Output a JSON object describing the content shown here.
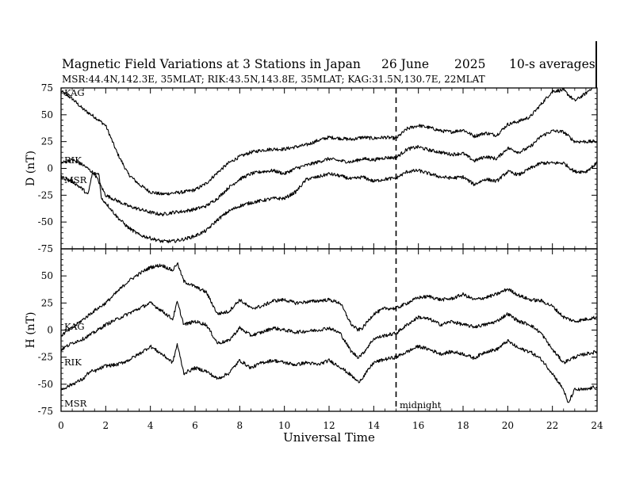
{
  "header": {
    "title": "Magnetic Field Variations at 3 Stations in Japan",
    "date": "26 June",
    "year": "2025",
    "averaging": "10-s averages",
    "stations_line": "MSR:44.4N,142.3E, 35MLAT;  RIK:43.5N,143.8E, 35MLAT;  KAG:31.5N,130.7E, 22MLAT"
  },
  "chart_data": [
    {
      "type": "line",
      "panel": "D",
      "ylabel": "D (nT)",
      "ylim": [
        -75,
        75
      ],
      "yticks": [
        75,
        50,
        25,
        0,
        -25,
        -50,
        -75
      ],
      "xlim": [
        0,
        24
      ],
      "series": [
        {
          "name": "KAG",
          "x": [
            0,
            0.5,
            1,
            1.5,
            2,
            2.5,
            3,
            3.5,
            4,
            4.5,
            5,
            5.5,
            6,
            6.5,
            7,
            7.5,
            8,
            8.5,
            9,
            9.5,
            10,
            10.5,
            11,
            11.5,
            12,
            12.5,
            13,
            13.5,
            14,
            14.5,
            15,
            15.5,
            16,
            16.5,
            17,
            17.5,
            18,
            18.5,
            19,
            19.5,
            20,
            20.5,
            21,
            21.5,
            22,
            22.5,
            23,
            23.5,
            24
          ],
          "y": [
            72,
            65,
            55,
            48,
            40,
            15,
            -5,
            -15,
            -22,
            -24,
            -23,
            -22,
            -20,
            -14,
            -4,
            5,
            11,
            15,
            17,
            18,
            18,
            20,
            22,
            26,
            29,
            28,
            27,
            29,
            28,
            29,
            28,
            37,
            40,
            38,
            35,
            34,
            36,
            30,
            33,
            31,
            41,
            44,
            48,
            60,
            72,
            73,
            63,
            70,
            80
          ]
        },
        {
          "name": "RIK",
          "x": [
            0,
            0.5,
            1,
            1.5,
            2,
            2.5,
            3,
            3.5,
            4,
            4.5,
            5,
            5.5,
            6,
            6.5,
            7,
            7.5,
            8,
            8.5,
            9,
            9.5,
            10,
            10.5,
            11,
            11.5,
            12,
            12.5,
            13,
            13.5,
            14,
            14.5,
            15,
            15.5,
            16,
            16.5,
            17,
            17.5,
            18,
            18.5,
            19,
            19.5,
            20,
            20.5,
            21,
            21.5,
            22,
            22.5,
            23,
            23.5,
            24
          ],
          "y": [
            5,
            8,
            3,
            -5,
            -25,
            -30,
            -35,
            -38,
            -41,
            -43,
            -41,
            -40,
            -38,
            -35,
            -28,
            -18,
            -10,
            -5,
            -3,
            -2,
            -5,
            0,
            3,
            6,
            9,
            7,
            6,
            9,
            8,
            10,
            10,
            18,
            20,
            17,
            15,
            13,
            14,
            7,
            11,
            9,
            19,
            15,
            20,
            30,
            35,
            34,
            25,
            25,
            25
          ]
        },
        {
          "name": "MSR",
          "x": [
            0,
            0.5,
            1,
            1.2,
            1.4,
            1.6,
            1.7,
            1.8,
            2,
            2.5,
            3,
            3.5,
            4,
            4.5,
            5,
            5.5,
            6,
            6.5,
            7,
            7.5,
            8,
            8.5,
            9,
            9.5,
            10,
            10.5,
            11,
            11.5,
            12,
            12.5,
            13,
            13.5,
            14,
            14.5,
            15,
            15.5,
            16,
            16.5,
            17,
            17.5,
            18,
            18.5,
            19,
            19.5,
            20,
            20.5,
            21,
            21.5,
            22,
            22.5,
            23,
            23.5,
            24
          ],
          "y": [
            -8,
            -12,
            -20,
            -25,
            -5,
            -5,
            -5,
            -28,
            -32,
            -45,
            -55,
            -62,
            -65,
            -68,
            -68,
            -66,
            -63,
            -58,
            -48,
            -40,
            -35,
            -32,
            -30,
            -28,
            -28,
            -22,
            -10,
            -8,
            -5,
            -7,
            -10,
            -8,
            -12,
            -10,
            -9,
            -3,
            -2,
            -5,
            -8,
            -9,
            -8,
            -15,
            -10,
            -12,
            -3,
            -6,
            0,
            5,
            5,
            5,
            -3,
            -3,
            5
          ]
        }
      ]
    },
    {
      "type": "line",
      "panel": "H",
      "ylabel": "H (nT)",
      "ylim": [
        -75,
        75
      ],
      "yticks": [
        50,
        25,
        0,
        -25,
        -50,
        -75
      ],
      "xlim": [
        0,
        24
      ],
      "xticks": [
        0,
        2,
        4,
        6,
        8,
        10,
        12,
        14,
        16,
        18,
        20,
        22,
        24
      ],
      "xlabel": "Universal Time",
      "series": [
        {
          "name": "KAG",
          "x": [
            0,
            0.5,
            1,
            1.5,
            2,
            2.5,
            3,
            3.5,
            4,
            4.5,
            5,
            5.2,
            5.5,
            6,
            6.5,
            7,
            7.5,
            8,
            8.5,
            9,
            9.5,
            10,
            10.5,
            11,
            11.5,
            12,
            12.5,
            13,
            13.3,
            13.5,
            14,
            14.5,
            15,
            15.5,
            16,
            16.5,
            17,
            17.5,
            18,
            18.5,
            19,
            19.5,
            20,
            20.5,
            21,
            21.5,
            22,
            22.5,
            23,
            23.5,
            24
          ],
          "y": [
            -5,
            2,
            10,
            18,
            25,
            35,
            45,
            52,
            58,
            60,
            55,
            62,
            45,
            40,
            35,
            15,
            17,
            28,
            20,
            22,
            27,
            28,
            25,
            26,
            27,
            28,
            25,
            5,
            0,
            2,
            15,
            20,
            20,
            25,
            30,
            31,
            28,
            29,
            33,
            28,
            30,
            33,
            38,
            32,
            28,
            27,
            22,
            12,
            8,
            10,
            12
          ]
        },
        {
          "name": "RIK",
          "x": [
            0,
            0.5,
            1,
            1.5,
            2,
            2.5,
            3,
            3.5,
            4,
            4.5,
            5,
            5.2,
            5.5,
            6,
            6.5,
            7,
            7.5,
            8,
            8.5,
            9,
            9.5,
            10,
            10.5,
            11,
            11.5,
            12,
            12.5,
            13,
            13.3,
            13.5,
            14,
            14.5,
            15,
            15.5,
            16,
            16.5,
            17,
            17.5,
            18,
            18.5,
            19,
            19.5,
            20,
            20.5,
            21,
            21.5,
            22,
            22.5,
            23,
            23.5,
            24
          ],
          "y": [
            -18,
            -12,
            -8,
            -2,
            5,
            10,
            15,
            20,
            25,
            18,
            10,
            26,
            5,
            8,
            5,
            -12,
            -10,
            2,
            -5,
            -2,
            2,
            0,
            -2,
            -1,
            0,
            2,
            -3,
            -20,
            -25,
            -22,
            -8,
            -5,
            -3,
            5,
            12,
            10,
            5,
            8,
            5,
            3,
            5,
            8,
            15,
            8,
            5,
            -3,
            -18,
            -30,
            -25,
            -22,
            -20
          ]
        },
        {
          "name": "MSR",
          "x": [
            0,
            0.5,
            1,
            1.2,
            1.4,
            1.5,
            1.6,
            1.7,
            1.8,
            2,
            2.5,
            3,
            3.5,
            4,
            4.5,
            5,
            5.2,
            5.5,
            6,
            6.5,
            7,
            7.5,
            8,
            8.5,
            9,
            9.5,
            10,
            10.5,
            11,
            11.5,
            12,
            12.5,
            13,
            13.3,
            13.5,
            14,
            14.5,
            15,
            15.5,
            16,
            16.5,
            17,
            17.5,
            18,
            18.5,
            19,
            19.5,
            20,
            20.5,
            21,
            21.5,
            22,
            22.5,
            22.7,
            23,
            23.5,
            24
          ],
          "y": [
            -55,
            -50,
            -45,
            -40,
            -38,
            -38,
            -37,
            -36,
            -35,
            -33,
            -32,
            -28,
            -22,
            -15,
            -22,
            -30,
            -13,
            -40,
            -35,
            -38,
            -45,
            -40,
            -28,
            -35,
            -30,
            -28,
            -30,
            -32,
            -30,
            -32,
            -28,
            -34,
            -42,
            -48,
            -44,
            -30,
            -27,
            -25,
            -20,
            -15,
            -18,
            -22,
            -20,
            -22,
            -26,
            -20,
            -18,
            -10,
            -17,
            -20,
            -27,
            -40,
            -55,
            -68,
            -55,
            -55,
            -52
          ]
        }
      ]
    }
  ],
  "labels": {
    "d_panel": {
      "kag": "KAG",
      "rik": "RIK",
      "msr": "MSR"
    },
    "h_panel": {
      "kag": "KAG",
      "rik": "RIK",
      "msr": "MSR"
    },
    "midnight": "midnight"
  },
  "midnight_ut": 15
}
